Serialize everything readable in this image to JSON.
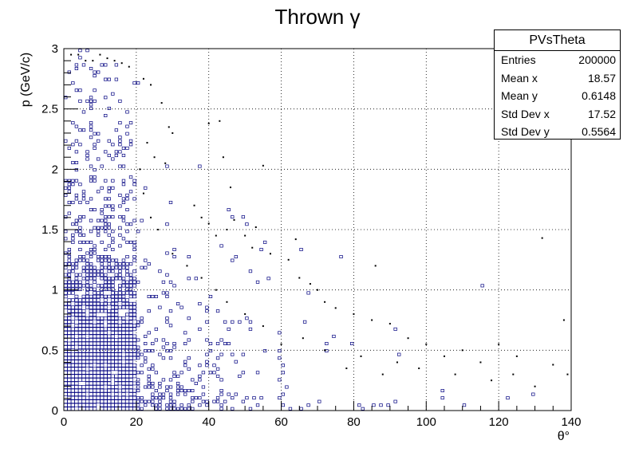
{
  "chart_data": {
    "type": "scatter",
    "title": "Thrown γ",
    "xlabel": "θ°",
    "ylabel": "p (GeV/c)",
    "xlim": [
      0,
      140
    ],
    "ylim": [
      0,
      3
    ],
    "x_ticks": [
      "0",
      "20",
      "40",
      "60",
      "80",
      "100",
      "120",
      "140"
    ],
    "y_ticks": [
      "0",
      "0.5",
      "1",
      "1.5",
      "2",
      "2.5",
      "3"
    ],
    "grid": true,
    "marker_color": "#000080",
    "description_of_density": "Dense box-style 2D histogram concentrated at θ 0–20° and p 0–1.5 GeV/c, thinning with increasing θ; sparse entries extend to θ≈140° at low p.",
    "sample_points": [
      [
        2,
        2.95
      ],
      [
        4,
        2.95
      ],
      [
        6,
        2.9
      ],
      [
        8,
        2.9
      ],
      [
        10,
        2.95
      ],
      [
        12,
        2.92
      ],
      [
        14,
        2.9
      ],
      [
        16,
        2.88
      ],
      [
        18,
        2.85
      ],
      [
        22,
        2.75
      ],
      [
        24,
        2.7
      ],
      [
        27,
        2.55
      ],
      [
        29,
        2.35
      ],
      [
        30,
        2.3
      ],
      [
        23,
        2.22
      ],
      [
        25,
        2.1
      ],
      [
        28,
        2.05
      ],
      [
        40,
        2.38
      ],
      [
        43,
        2.4
      ],
      [
        44,
        2.1
      ],
      [
        46,
        1.85
      ],
      [
        55,
        2.03
      ],
      [
        47,
        1.58
      ],
      [
        53,
        1.52
      ],
      [
        64,
        1.42
      ],
      [
        36,
        1.7
      ],
      [
        38,
        1.6
      ],
      [
        40,
        1.55
      ],
      [
        42,
        1.45
      ],
      [
        45,
        1.5
      ],
      [
        50,
        1.45
      ],
      [
        52,
        1.35
      ],
      [
        57,
        1.3
      ],
      [
        62,
        1.25
      ],
      [
        65,
        1.1
      ],
      [
        68,
        1.05
      ],
      [
        70,
        1.0
      ],
      [
        72,
        0.9
      ],
      [
        75,
        0.85
      ],
      [
        80,
        0.8
      ],
      [
        85,
        0.75
      ],
      [
        86,
        1.2
      ],
      [
        90,
        0.72
      ],
      [
        95,
        0.6
      ],
      [
        100,
        0.55
      ],
      [
        105,
        0.45
      ],
      [
        110,
        0.5
      ],
      [
        115,
        0.4
      ],
      [
        120,
        0.55
      ],
      [
        125,
        0.45
      ],
      [
        132,
        1.43
      ],
      [
        135,
        0.38
      ],
      [
        138,
        0.75
      ],
      [
        139,
        0.3
      ],
      [
        130,
        0.2
      ],
      [
        124,
        0.3
      ],
      [
        118,
        0.25
      ],
      [
        108,
        0.3
      ],
      [
        98,
        0.35
      ],
      [
        92,
        0.4
      ],
      [
        88,
        0.3
      ],
      [
        82,
        0.45
      ],
      [
        78,
        0.35
      ],
      [
        72,
        0.5
      ],
      [
        66,
        0.6
      ],
      [
        60,
        0.55
      ],
      [
        55,
        0.7
      ],
      [
        50,
        0.8
      ],
      [
        45,
        0.9
      ],
      [
        42,
        1.0
      ],
      [
        38,
        1.1
      ],
      [
        34,
        1.2
      ],
      [
        30,
        1.3
      ],
      [
        26,
        1.5
      ],
      [
        24,
        1.6
      ],
      [
        22,
        1.8
      ],
      [
        21,
        2.0
      ]
    ]
  },
  "stats_box": {
    "title": "PVsTheta",
    "rows": [
      {
        "label": "Entries",
        "value": "200000"
      },
      {
        "label": "Mean x",
        "value": "18.57"
      },
      {
        "label": "Mean y",
        "value": "0.6148"
      },
      {
        "label": "Std Dev x",
        "value": "17.52"
      },
      {
        "label": "Std Dev y",
        "value": "0.5564"
      }
    ]
  }
}
